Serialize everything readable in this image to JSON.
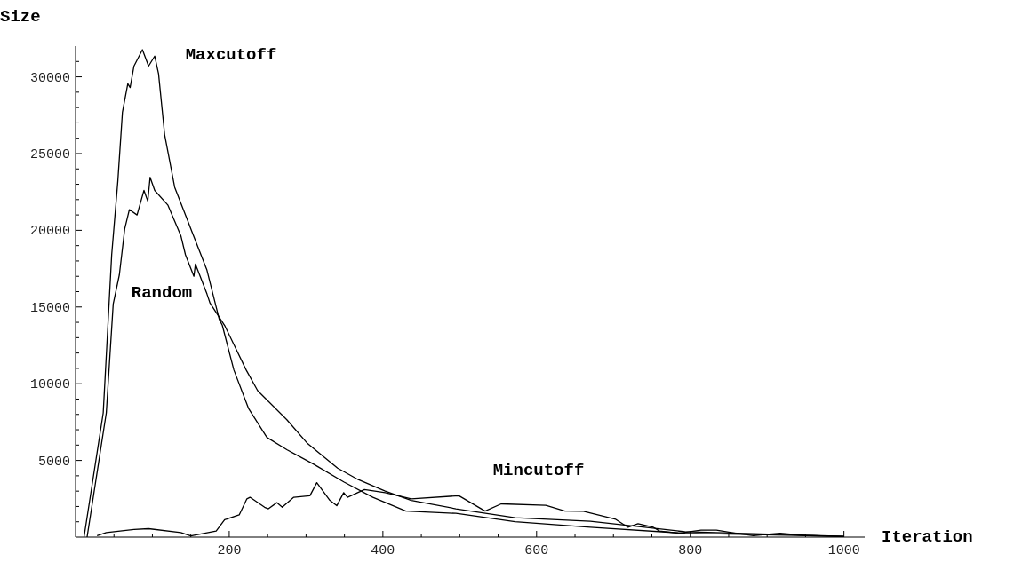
{
  "chart_data": {
    "type": "line",
    "xlabel": "Iteration",
    "ylabel": "Size",
    "xlim": [
      0,
      1027
    ],
    "ylim": [
      0,
      32000
    ],
    "xticks": [
      {
        "value": 50,
        "label": null
      },
      {
        "value": 100,
        "label": null
      },
      {
        "value": 150,
        "label": null
      },
      200,
      {
        "value": 250,
        "label": null
      },
      {
        "value": 300,
        "label": null
      },
      {
        "value": 350,
        "label": null
      },
      400,
      {
        "value": 450,
        "label": null
      },
      {
        "value": 500,
        "label": null
      },
      {
        "value": 550,
        "label": null
      },
      600,
      {
        "value": 650,
        "label": null
      },
      {
        "value": 700,
        "label": null
      },
      {
        "value": 750,
        "label": null
      },
      800,
      {
        "value": 850,
        "label": null
      },
      {
        "value": 900,
        "label": null
      },
      {
        "value": 950,
        "label": null
      },
      1000
    ],
    "yticks": [
      {
        "value": 1000,
        "label": null
      },
      {
        "value": 2000,
        "label": null
      },
      {
        "value": 3000,
        "label": null
      },
      {
        "value": 4000,
        "label": null
      },
      5000,
      {
        "value": 6000,
        "label": null
      },
      {
        "value": 7000,
        "label": null
      },
      {
        "value": 8000,
        "label": null
      },
      {
        "value": 9000,
        "label": null
      },
      10000,
      {
        "value": 11000,
        "label": null
      },
      {
        "value": 12000,
        "label": null
      },
      {
        "value": 13000,
        "label": null
      },
      {
        "value": 14000,
        "label": null
      },
      15000,
      {
        "value": 16000,
        "label": null
      },
      {
        "value": 17000,
        "label": null
      },
      {
        "value": 18000,
        "label": null
      },
      {
        "value": 19000,
        "label": null
      },
      20000,
      {
        "value": 21000,
        "label": null
      },
      {
        "value": 22000,
        "label": null
      },
      {
        "value": 23000,
        "label": null
      },
      {
        "value": 24000,
        "label": null
      },
      25000,
      {
        "value": 26000,
        "label": null
      },
      {
        "value": 27000,
        "label": null
      },
      {
        "value": 28000,
        "label": null
      },
      {
        "value": 29000,
        "label": null
      },
      30000,
      {
        "value": 31000,
        "label": null
      }
    ],
    "marker": "none",
    "line_style": "solid",
    "series": [
      {
        "name": "Maxcutoff",
        "color": "#000000",
        "x": [
          11,
          36,
          47,
          55,
          61,
          68,
          71,
          76,
          87,
          95,
          103,
          108,
          116,
          129,
          150,
          171,
          187,
          191,
          206,
          225,
          249,
          275,
          310,
          349,
          387,
          430,
          495,
          572,
          670,
          793,
          1000
        ],
        "values": [
          0,
          8100,
          18400,
          23200,
          27700,
          29550,
          29300,
          30700,
          31770,
          30700,
          31350,
          30200,
          26200,
          22800,
          20100,
          17400,
          14200,
          13800,
          10900,
          8400,
          6500,
          5700,
          4750,
          3600,
          2600,
          1700,
          1550,
          1000,
          640,
          250,
          50
        ]
      },
      {
        "name": "Random",
        "color": "#000000",
        "x": [
          15,
          40,
          49,
          57,
          64,
          70,
          80,
          89,
          94,
          97,
          103,
          120,
          137,
          143,
          154,
          156,
          171,
          175,
          194,
          222,
          237,
          275,
          302,
          341,
          368,
          403,
          437,
          495,
          572,
          670,
          793,
          1000
        ],
        "values": [
          0,
          8100,
          15200,
          17100,
          20100,
          21350,
          21000,
          22600,
          21900,
          23450,
          22600,
          21650,
          19650,
          18400,
          17000,
          17800,
          15850,
          15250,
          13800,
          10900,
          9550,
          7650,
          6100,
          4500,
          3750,
          3000,
          2400,
          1850,
          1270,
          1040,
          350,
          50
        ]
      },
      {
        "name": "Mincutoff",
        "color": "#000000",
        "x": [
          28,
          40,
          76,
          95,
          137,
          150,
          183,
          194,
          213,
          223,
          227,
          246,
          251,
          262,
          269,
          284,
          305,
          314,
          331,
          340,
          349,
          354,
          376,
          403,
          437,
          499,
          533,
          554,
          612,
          637,
          661,
          703,
          719,
          732,
          752,
          760,
          785,
          814,
          834,
          859,
          882,
          917,
          950,
          1000
        ],
        "values": [
          100,
          300,
          500,
          550,
          300,
          80,
          400,
          1130,
          1450,
          2500,
          2600,
          1950,
          1850,
          2250,
          1950,
          2600,
          2700,
          3550,
          2400,
          2050,
          2900,
          2600,
          3100,
          2900,
          2500,
          2700,
          1700,
          2170,
          2080,
          1700,
          1680,
          1160,
          640,
          870,
          640,
          400,
          250,
          460,
          460,
          250,
          100,
          250,
          100,
          30
        ]
      }
    ]
  }
}
